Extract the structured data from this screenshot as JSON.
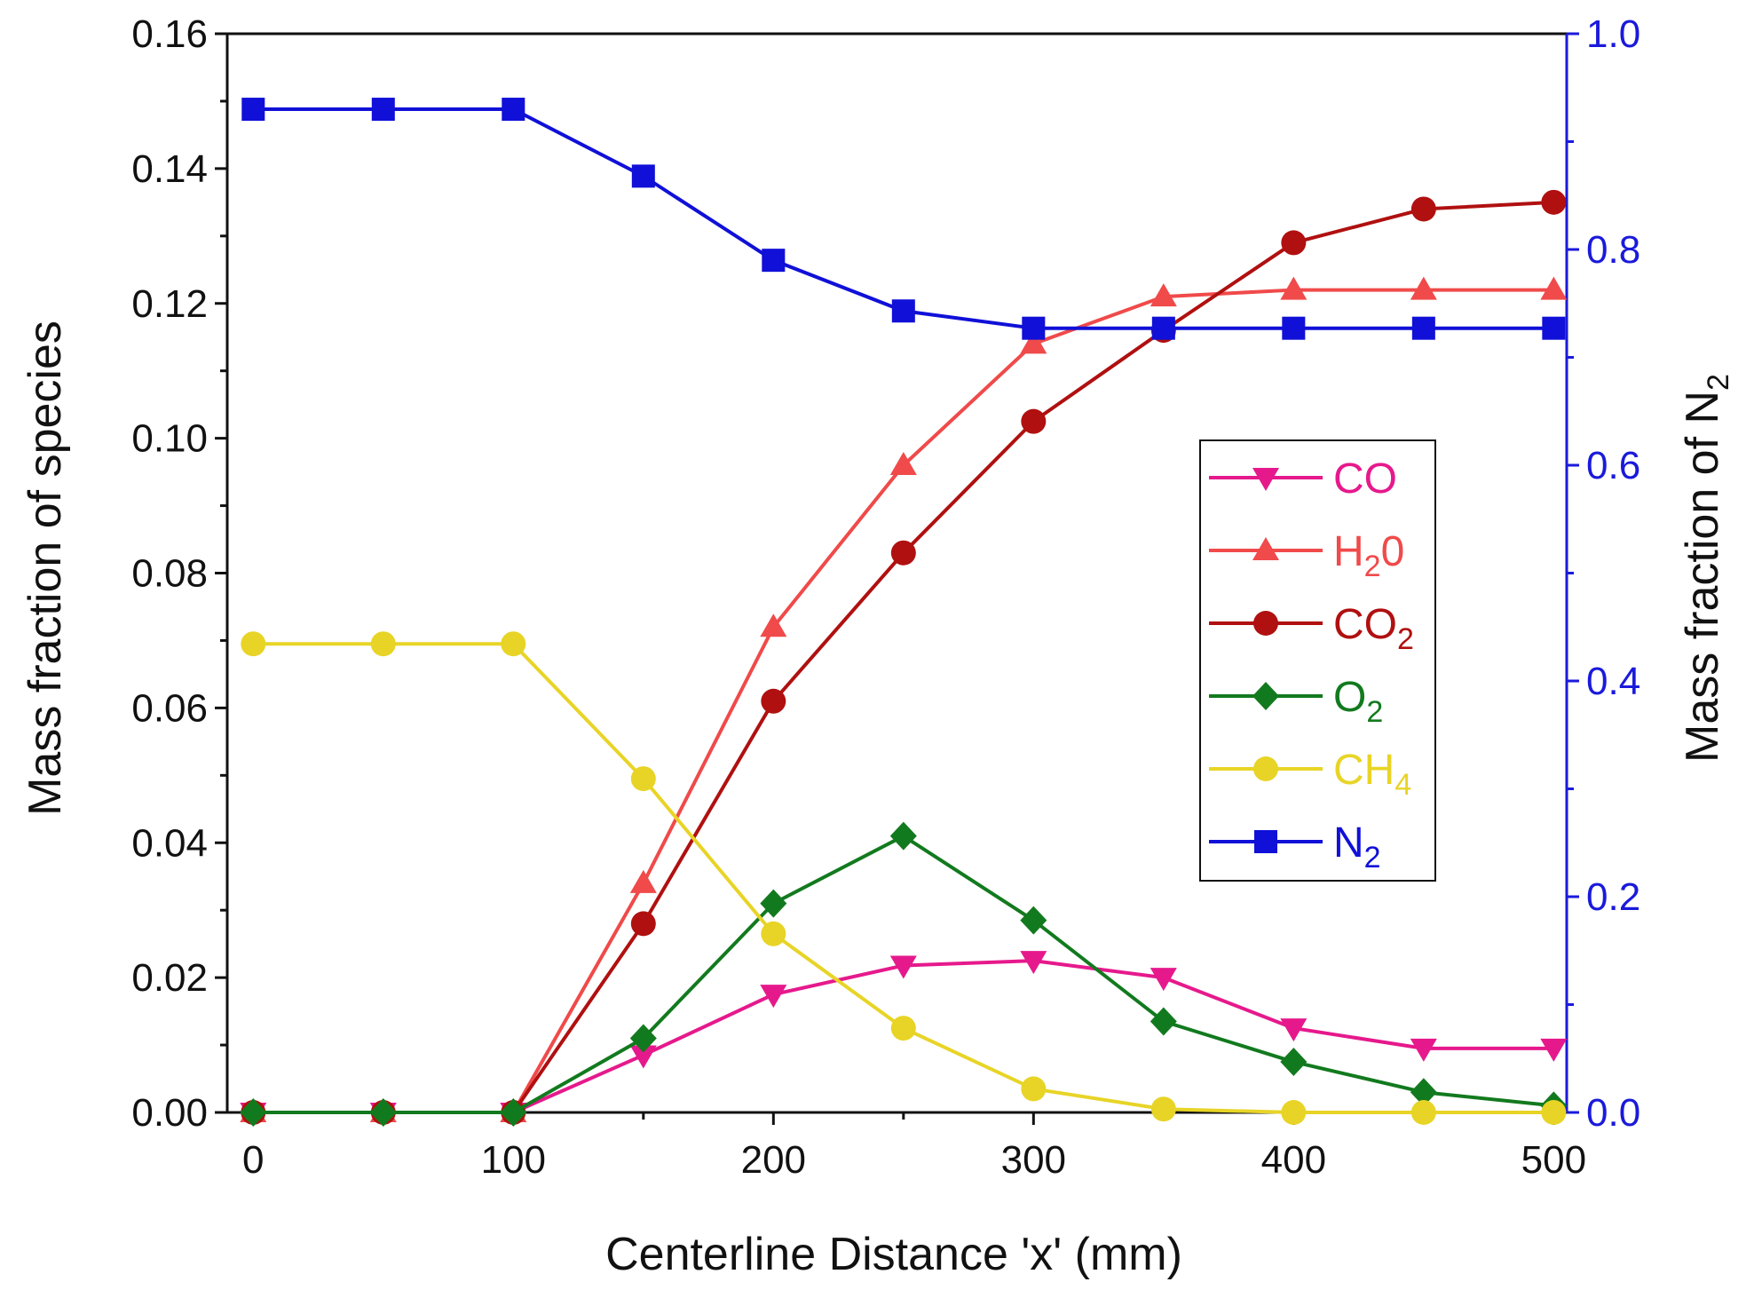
{
  "chart_data": {
    "type": "line",
    "title": "",
    "xlabel": "Centerline Distance 'x' (mm)",
    "ylabel": "Mass fraction of species",
    "y2label": {
      "main": "Mass fraction of N",
      "sub": "2"
    },
    "xlim": [
      -10,
      505
    ],
    "ylim": [
      0,
      0.16
    ],
    "y2lim": [
      0,
      1.0
    ],
    "x_ticks": [
      0,
      100,
      200,
      300,
      400,
      500
    ],
    "x_tick_labels": [
      "0",
      "100",
      "200",
      "300",
      "400",
      "500"
    ],
    "y_ticks": [
      0,
      0.02,
      0.04,
      0.06,
      0.08,
      0.1,
      0.12,
      0.14,
      0.16
    ],
    "y_tick_labels": [
      "0.00",
      "0.02",
      "0.04",
      "0.06",
      "0.08",
      "0.10",
      "0.12",
      "0.14",
      "0.16"
    ],
    "y2_ticks": [
      0,
      0.2,
      0.4,
      0.6,
      0.8,
      1.0
    ],
    "y2_tick_labels": [
      "0.0",
      "0.2",
      "0.4",
      "0.6",
      "0.8",
      "1.0"
    ],
    "y2_color": "#1a1adb",
    "grid": false,
    "legend_position": "right-middle",
    "x": [
      0,
      50,
      100,
      150,
      200,
      250,
      300,
      350,
      400,
      450,
      500
    ],
    "series": [
      {
        "name": "CO",
        "sub": "",
        "color": "#e6198c",
        "marker": "triangle-down",
        "axis": "left",
        "values": [
          0,
          0,
          0,
          0.0085,
          0.0175,
          0.0218,
          0.0225,
          0.02,
          0.0125,
          0.0095,
          0.0095
        ]
      },
      {
        "name": "H",
        "sub": "2",
        "tail": "0",
        "color": "#f04a4a",
        "marker": "triangle-up",
        "axis": "left",
        "values": [
          0,
          0,
          0,
          0.034,
          0.072,
          0.096,
          0.114,
          0.121,
          0.122,
          0.122,
          0.122
        ]
      },
      {
        "name": "CO",
        "sub": "2",
        "color": "#b01010",
        "marker": "circle",
        "axis": "left",
        "values": [
          0,
          0,
          0,
          0.028,
          0.061,
          0.083,
          0.1025,
          0.116,
          0.129,
          0.134,
          0.135
        ]
      },
      {
        "name": "O",
        "sub": "2",
        "color": "#127a1e",
        "marker": "diamond",
        "axis": "left",
        "values": [
          0,
          0,
          0,
          0.011,
          0.031,
          0.041,
          0.0285,
          0.0135,
          0.0075,
          0.003,
          0.001
        ]
      },
      {
        "name": "CH",
        "sub": "4",
        "color": "#e8d426",
        "marker": "circle",
        "axis": "left",
        "values": [
          0.0695,
          0.0695,
          0.0695,
          0.0495,
          0.0265,
          0.0125,
          0.0035,
          0.0005,
          0,
          0,
          0
        ]
      },
      {
        "name": "N",
        "sub": "2",
        "color": "#1010d8",
        "marker": "square",
        "axis": "right",
        "values": [
          0.93,
          0.93,
          0.93,
          0.868,
          0.79,
          0.743,
          0.727,
          0.727,
          0.727,
          0.727,
          0.727
        ]
      }
    ]
  }
}
